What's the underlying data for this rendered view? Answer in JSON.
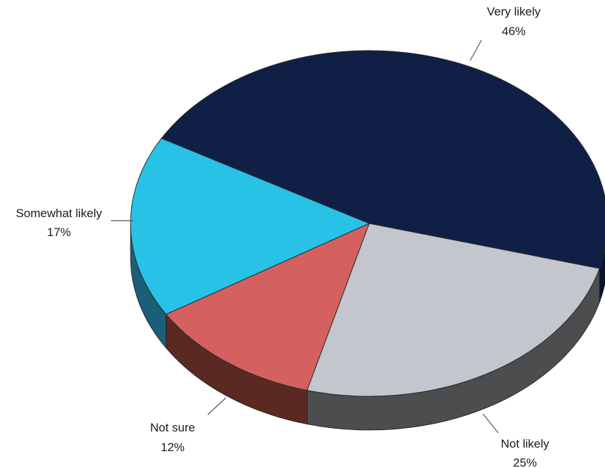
{
  "chart_data": {
    "type": "pie",
    "title": "",
    "unit": "%",
    "legend": "none",
    "slices": [
      {
        "label": "Very likely",
        "value": 46,
        "display": "46%",
        "color": "#0f1f45",
        "side": "#081530"
      },
      {
        "label": "Not likely",
        "value": 25,
        "display": "25%",
        "color": "#c3c6cc",
        "side": "#4b4d4f"
      },
      {
        "label": "Not sure",
        "value": 12,
        "display": "12%",
        "color": "#d56060",
        "side": "#5a2a22"
      },
      {
        "label": "Somewhat likely",
        "value": 17,
        "display": "17%",
        "color": "#27c2e6",
        "side": "#1a5f78"
      }
    ]
  }
}
